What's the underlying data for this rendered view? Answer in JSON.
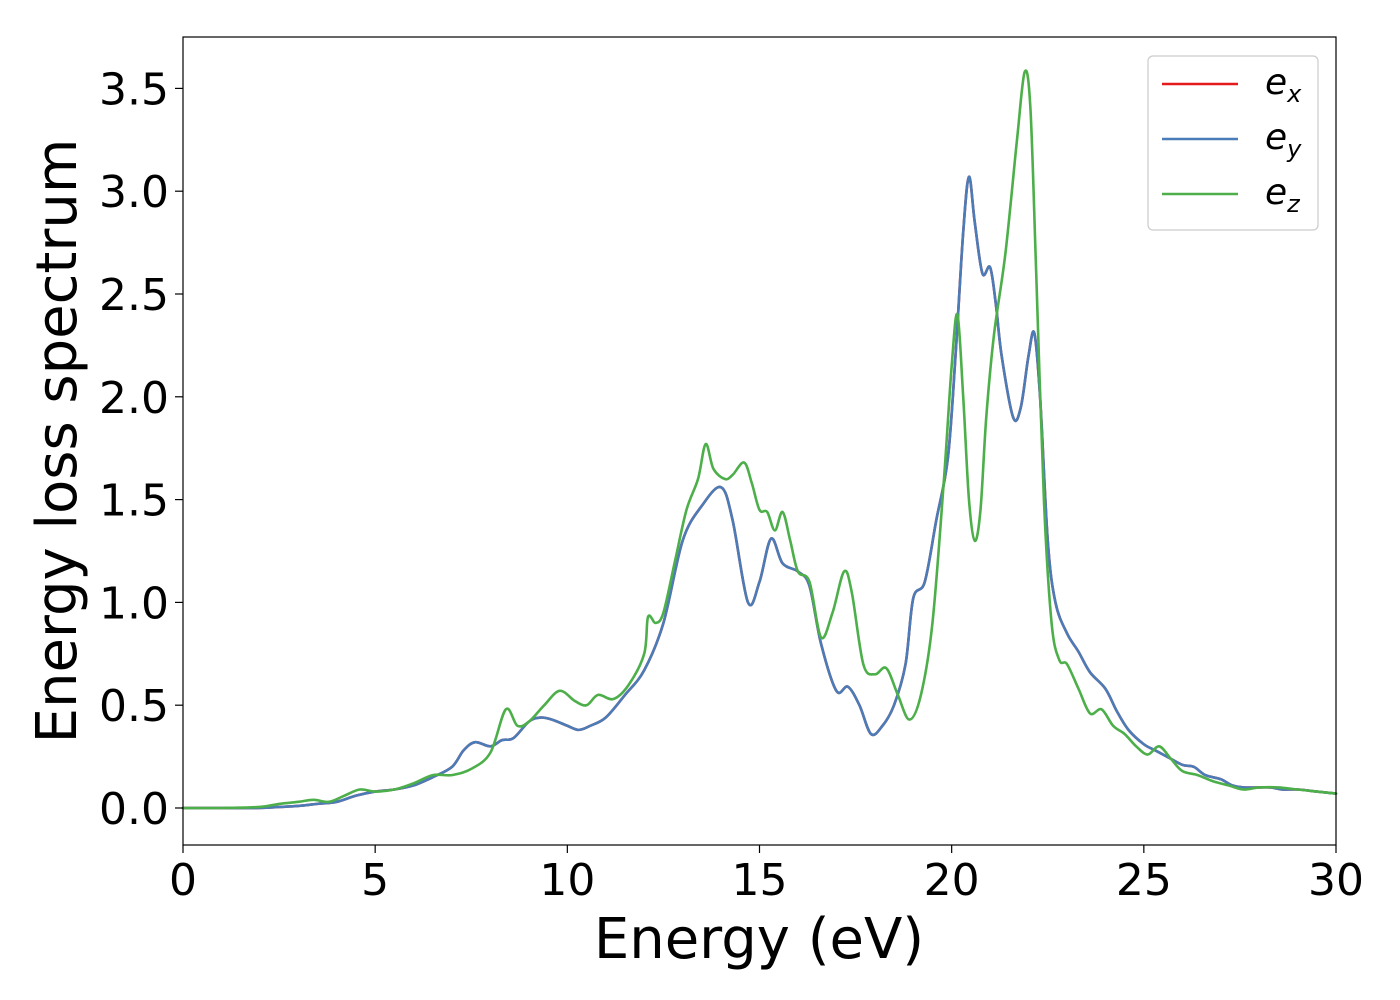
{
  "chart_data": {
    "type": "line",
    "xlabel": "Energy (eV)",
    "ylabel": "Energy loss spectrum",
    "xlim": [
      0,
      30
    ],
    "ylim": [
      -0.18,
      3.75
    ],
    "xticks": [
      0,
      5,
      10,
      15,
      20,
      25,
      30
    ],
    "xtick_labels": [
      "0",
      "5",
      "10",
      "15",
      "20",
      "25",
      "30"
    ],
    "yticks": [
      0.0,
      0.5,
      1.0,
      1.5,
      2.0,
      2.5,
      3.0,
      3.5
    ],
    "ytick_labels": [
      "0.0",
      "0.5",
      "1.0",
      "1.5",
      "2.0",
      "2.5",
      "3.0",
      "3.5"
    ],
    "grid": false,
    "legend_position": "top-right",
    "series": [
      {
        "name": "e_x",
        "label_main": "e",
        "label_sub": "x",
        "color": "#e41a1c",
        "x": [
          0,
          1,
          2,
          2.5,
          3,
          3.5,
          4,
          4.5,
          5,
          5.5,
          6,
          6.5,
          7,
          7.3,
          7.6,
          8,
          8.3,
          8.6,
          9,
          9.3,
          9.6,
          10,
          10.3,
          10.6,
          11,
          11.5,
          12,
          12.5,
          13,
          13.5,
          14,
          14.3,
          14.7,
          15,
          15.3,
          15.6,
          16,
          16.3,
          16.6,
          17,
          17.3,
          17.6,
          17.9,
          18.2,
          18.5,
          18.8,
          19,
          19.3,
          19.6,
          19.9,
          20.1,
          20.3,
          20.45,
          20.6,
          20.8,
          21,
          21.15,
          21.3,
          21.6,
          21.8,
          22,
          22.15,
          22.3,
          22.5,
          22.7,
          23,
          23.3,
          23.6,
          24,
          24.3,
          24.6,
          25,
          25.3,
          25.6,
          26,
          26.3,
          26.6,
          27,
          27.3,
          27.6,
          28,
          28.3,
          28.6,
          29,
          29.5,
          30
        ],
        "y": [
          0,
          0,
          0,
          0.005,
          0.01,
          0.02,
          0.03,
          0.06,
          0.08,
          0.09,
          0.11,
          0.15,
          0.2,
          0.28,
          0.32,
          0.3,
          0.33,
          0.34,
          0.42,
          0.44,
          0.43,
          0.4,
          0.38,
          0.4,
          0.44,
          0.55,
          0.67,
          0.9,
          1.3,
          1.47,
          1.56,
          1.4,
          1.0,
          1.1,
          1.31,
          1.19,
          1.15,
          1.08,
          0.8,
          0.57,
          0.59,
          0.5,
          0.36,
          0.4,
          0.5,
          0.7,
          1.02,
          1.1,
          1.4,
          1.7,
          2.2,
          2.8,
          3.07,
          2.85,
          2.6,
          2.63,
          2.45,
          2.2,
          1.9,
          1.95,
          2.2,
          2.31,
          2.0,
          1.3,
          1.0,
          0.85,
          0.76,
          0.66,
          0.58,
          0.47,
          0.38,
          0.31,
          0.28,
          0.25,
          0.21,
          0.2,
          0.16,
          0.14,
          0.11,
          0.1,
          0.1,
          0.1,
          0.09,
          0.09,
          0.08,
          0.07
        ]
      },
      {
        "name": "e_y",
        "label_main": "e",
        "label_sub": "y",
        "color": "#4a7cb8",
        "x": [
          0,
          1,
          2,
          2.5,
          3,
          3.5,
          4,
          4.5,
          5,
          5.5,
          6,
          6.5,
          7,
          7.3,
          7.6,
          8,
          8.3,
          8.6,
          9,
          9.3,
          9.6,
          10,
          10.3,
          10.6,
          11,
          11.5,
          12,
          12.5,
          13,
          13.5,
          14,
          14.3,
          14.7,
          15,
          15.3,
          15.6,
          16,
          16.3,
          16.6,
          17,
          17.3,
          17.6,
          17.9,
          18.2,
          18.5,
          18.8,
          19,
          19.3,
          19.6,
          19.9,
          20.1,
          20.3,
          20.45,
          20.6,
          20.8,
          21,
          21.15,
          21.3,
          21.6,
          21.8,
          22,
          22.15,
          22.3,
          22.5,
          22.7,
          23,
          23.3,
          23.6,
          24,
          24.3,
          24.6,
          25,
          25.3,
          25.6,
          26,
          26.3,
          26.6,
          27,
          27.3,
          27.6,
          28,
          28.3,
          28.6,
          29,
          29.5,
          30
        ],
        "y": [
          0,
          0,
          0,
          0.005,
          0.01,
          0.02,
          0.03,
          0.06,
          0.08,
          0.09,
          0.11,
          0.15,
          0.2,
          0.28,
          0.32,
          0.3,
          0.33,
          0.34,
          0.42,
          0.44,
          0.43,
          0.4,
          0.38,
          0.4,
          0.44,
          0.55,
          0.67,
          0.9,
          1.3,
          1.47,
          1.56,
          1.4,
          1.0,
          1.1,
          1.31,
          1.19,
          1.15,
          1.08,
          0.8,
          0.57,
          0.59,
          0.5,
          0.36,
          0.4,
          0.5,
          0.7,
          1.02,
          1.1,
          1.4,
          1.7,
          2.2,
          2.8,
          3.07,
          2.85,
          2.6,
          2.63,
          2.45,
          2.2,
          1.9,
          1.95,
          2.2,
          2.31,
          2.0,
          1.3,
          1.0,
          0.85,
          0.76,
          0.66,
          0.58,
          0.47,
          0.38,
          0.31,
          0.28,
          0.25,
          0.21,
          0.2,
          0.16,
          0.14,
          0.11,
          0.1,
          0.1,
          0.1,
          0.09,
          0.09,
          0.08,
          0.07
        ]
      },
      {
        "name": "e_z",
        "label_main": "e",
        "label_sub": "z",
        "color": "#4daf4a",
        "x": [
          0,
          1,
          2,
          2.5,
          3,
          3.4,
          3.8,
          4.2,
          4.6,
          5,
          5.5,
          6,
          6.5,
          7,
          7.5,
          8,
          8.4,
          8.7,
          9,
          9.4,
          9.8,
          10.2,
          10.5,
          10.8,
          11.2,
          11.6,
          12,
          12.1,
          12.3,
          12.5,
          12.8,
          13.1,
          13.4,
          13.6,
          13.8,
          14.1,
          14.3,
          14.6,
          14.8,
          15,
          15.2,
          15.4,
          15.6,
          15.8,
          16,
          16.3,
          16.6,
          16.9,
          17.2,
          17.4,
          17.7,
          18,
          18.3,
          18.6,
          18.9,
          19.2,
          19.5,
          19.8,
          20,
          20.15,
          20.3,
          20.45,
          20.6,
          20.75,
          20.9,
          21.1,
          21.4,
          21.7,
          21.9,
          22.05,
          22.2,
          22.4,
          22.6,
          22.8,
          23,
          23.3,
          23.6,
          23.9,
          24.2,
          24.5,
          24.8,
          25.1,
          25.4,
          25.7,
          26,
          26.4,
          26.8,
          27.2,
          27.6,
          28,
          28.5,
          29,
          29.5,
          30
        ],
        "y": [
          0,
          0,
          0.005,
          0.02,
          0.03,
          0.04,
          0.03,
          0.06,
          0.09,
          0.08,
          0.09,
          0.12,
          0.16,
          0.16,
          0.19,
          0.27,
          0.48,
          0.4,
          0.42,
          0.5,
          0.57,
          0.52,
          0.5,
          0.55,
          0.53,
          0.6,
          0.75,
          0.93,
          0.9,
          0.95,
          1.2,
          1.45,
          1.6,
          1.77,
          1.65,
          1.6,
          1.62,
          1.68,
          1.58,
          1.45,
          1.44,
          1.35,
          1.44,
          1.3,
          1.15,
          1.1,
          0.83,
          0.95,
          1.15,
          1.05,
          0.7,
          0.65,
          0.68,
          0.55,
          0.43,
          0.55,
          0.9,
          1.6,
          2.15,
          2.4,
          2.0,
          1.5,
          1.3,
          1.45,
          1.9,
          2.3,
          2.7,
          3.25,
          3.58,
          3.4,
          2.6,
          1.5,
          0.9,
          0.72,
          0.7,
          0.58,
          0.46,
          0.48,
          0.4,
          0.36,
          0.3,
          0.26,
          0.3,
          0.24,
          0.18,
          0.16,
          0.13,
          0.11,
          0.09,
          0.1,
          0.1,
          0.09,
          0.08,
          0.07
        ]
      }
    ]
  }
}
